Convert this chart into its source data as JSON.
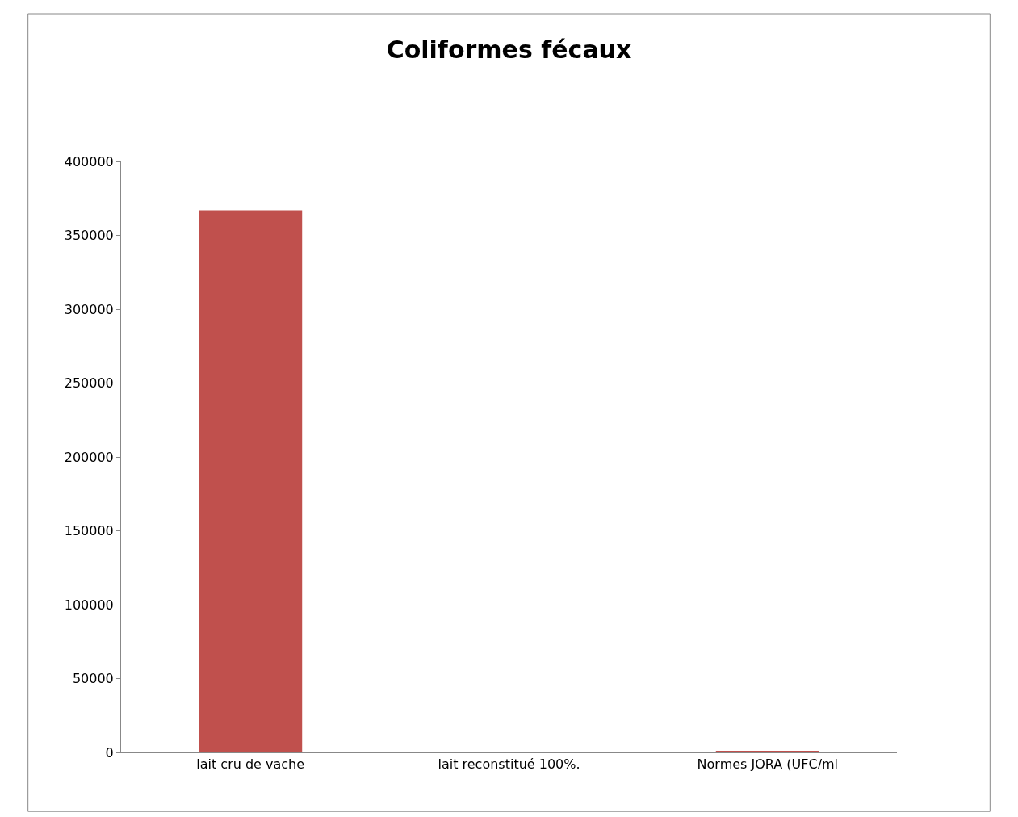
{
  "chart_data": {
    "type": "bar",
    "title": "Coliformes fécaux",
    "categories": [
      "lait cru de vache",
      "lait reconstitué 100%.",
      "Normes JORA (UFC/ml"
    ],
    "values": [
      367000,
      0,
      1000
    ],
    "color": "#c0504d",
    "ylim": [
      0,
      400000
    ],
    "yticks": [
      0,
      50000,
      100000,
      150000,
      200000,
      250000,
      300000,
      350000,
      400000
    ],
    "grid": false,
    "legend": false
  }
}
